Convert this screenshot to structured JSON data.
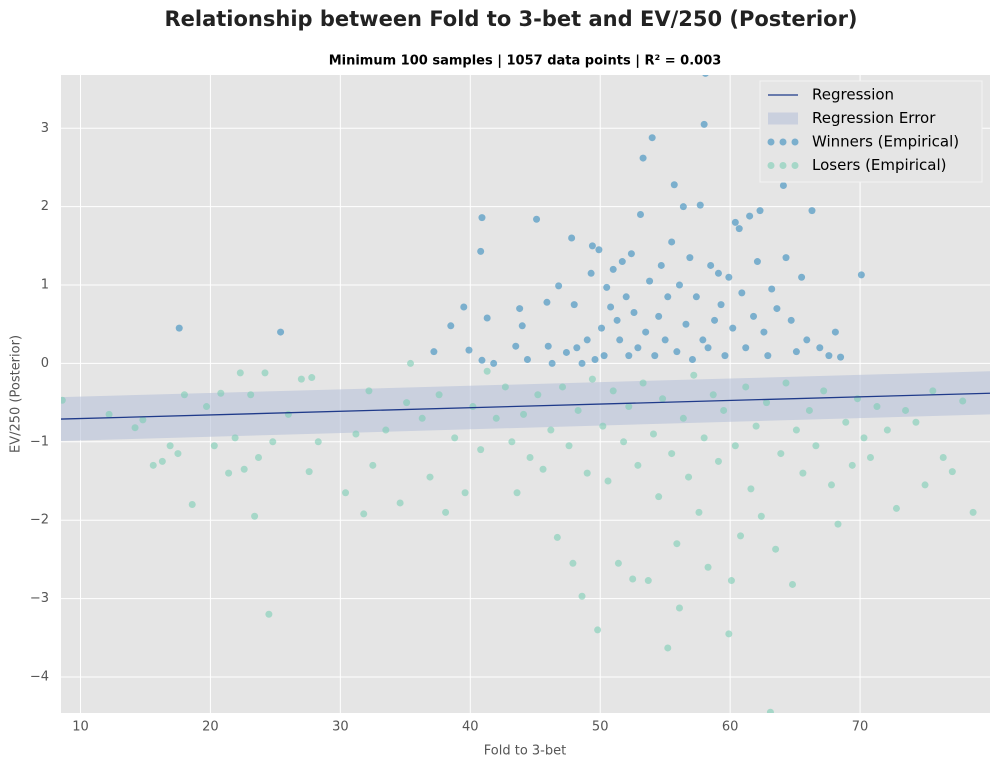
{
  "chart_data": {
    "type": "scatter",
    "title": "Relationship between Fold to 3-bet and EV/250 (Posterior)",
    "subtitle": "Minimum 100 samples | 1057 data points | R² =  0.003",
    "x_label": "Fold to 3-bet",
    "y_label": "EV/250 (Posterior)",
    "xlim": [
      8.5,
      80
    ],
    "ylim": [
      -4.46,
      3.68
    ],
    "xticks": [
      10,
      20,
      30,
      40,
      50,
      60,
      70
    ],
    "yticks": [
      {
        "value": -4,
        "label": "−4"
      },
      {
        "value": -3,
        "label": "−3"
      },
      {
        "value": -2,
        "label": "−2"
      },
      {
        "value": -1,
        "label": "−1"
      },
      0,
      1,
      2,
      3
    ],
    "grid": true,
    "legend": "upper right",
    "regression": {
      "name": "Regression",
      "color": "#1f3a8a",
      "x": [
        8.5,
        80
      ],
      "values": [
        -0.71,
        -0.38
      ],
      "band": {
        "name": "Regression Error",
        "color": "#b7c2d8",
        "x": [
          8.5,
          80
        ],
        "lower": [
          -0.99,
          -0.65
        ],
        "upper": [
          -0.43,
          -0.1
        ]
      }
    },
    "series": [
      {
        "name": "Winners (Empirical)",
        "color": "#348abd",
        "x": [
          17.6,
          25.4,
          37.2,
          38.5,
          39.5,
          39.9,
          40.9,
          40.8,
          40.9,
          41.3,
          41.8,
          43.5,
          43.8,
          44.0,
          44.4,
          45.1,
          45.9,
          46.0,
          46.3,
          46.8,
          47.4,
          47.8,
          48.0,
          48.2,
          48.6,
          49.0,
          49.3,
          49.4,
          49.6,
          49.9,
          50.1,
          50.3,
          50.5,
          50.8,
          51.0,
          51.3,
          51.5,
          51.7,
          52.0,
          52.2,
          52.4,
          52.6,
          52.9,
          53.1,
          53.3,
          53.5,
          53.8,
          54.0,
          54.2,
          54.5,
          54.7,
          55.0,
          55.2,
          55.5,
          55.7,
          55.9,
          56.1,
          56.4,
          56.6,
          56.9,
          57.1,
          57.4,
          57.7,
          57.9,
          58.0,
          58.1,
          58.3,
          58.5,
          58.8,
          59.1,
          59.3,
          59.6,
          59.9,
          60.2,
          60.4,
          60.7,
          60.9,
          61.2,
          61.5,
          61.8,
          62.1,
          62.3,
          62.6,
          62.9,
          63.2,
          63.6,
          64.1,
          64.3,
          64.7,
          65.1,
          65.5,
          65.9,
          66.3,
          66.9,
          67.6,
          68.1,
          68.5,
          70.1
        ],
        "values": [
          0.45,
          0.4,
          0.15,
          0.48,
          0.72,
          0.17,
          1.86,
          1.43,
          0.04,
          0.58,
          0.0,
          0.22,
          0.7,
          0.48,
          0.05,
          1.84,
          0.78,
          0.22,
          0.0,
          0.99,
          0.14,
          1.6,
          0.75,
          0.2,
          0.0,
          0.3,
          1.15,
          1.5,
          0.05,
          1.45,
          0.45,
          0.1,
          0.97,
          0.72,
          1.2,
          0.55,
          0.3,
          1.3,
          0.85,
          0.1,
          1.4,
          0.65,
          0.2,
          1.9,
          2.62,
          0.4,
          1.05,
          2.88,
          0.1,
          0.6,
          1.25,
          0.3,
          0.85,
          1.55,
          2.28,
          0.15,
          1.0,
          2.0,
          0.5,
          1.35,
          0.05,
          0.85,
          2.02,
          0.3,
          3.05,
          3.7,
          0.2,
          1.25,
          0.55,
          1.15,
          0.75,
          0.1,
          1.1,
          0.45,
          1.8,
          1.72,
          0.9,
          0.2,
          1.88,
          0.6,
          1.3,
          1.95,
          0.4,
          0.1,
          0.95,
          0.7,
          2.27,
          1.35,
          0.55,
          0.15,
          1.1,
          0.3,
          1.95,
          0.2,
          0.1,
          0.4,
          0.08,
          1.13
        ]
      },
      {
        "name": "Losers (Empirical)",
        "color": "#7ccdb4",
        "x": [
          8.6,
          12.2,
          14.2,
          14.8,
          15.6,
          16.3,
          16.9,
          17.5,
          18.0,
          18.6,
          19.7,
          20.3,
          20.8,
          21.4,
          21.9,
          22.3,
          22.6,
          23.1,
          23.4,
          23.7,
          24.2,
          24.5,
          24.8,
          26.0,
          27.0,
          27.6,
          27.8,
          28.3,
          30.4,
          31.2,
          31.8,
          32.2,
          32.5,
          33.5,
          34.6,
          35.1,
          35.4,
          36.3,
          36.9,
          37.6,
          38.1,
          38.8,
          39.6,
          40.2,
          40.8,
          41.3,
          42.0,
          42.7,
          43.2,
          43.6,
          44.1,
          44.6,
          45.2,
          45.6,
          46.2,
          46.7,
          47.1,
          47.6,
          47.9,
          48.3,
          48.6,
          49.0,
          49.4,
          49.8,
          50.2,
          50.6,
          51.0,
          51.4,
          51.8,
          52.2,
          52.5,
          52.9,
          53.3,
          53.7,
          54.1,
          54.5,
          54.8,
          55.2,
          55.5,
          55.9,
          56.1,
          56.4,
          56.8,
          57.2,
          57.6,
          58.0,
          58.3,
          58.7,
          59.1,
          59.5,
          59.9,
          60.1,
          60.4,
          60.8,
          61.2,
          61.6,
          62.0,
          62.4,
          62.8,
          63.1,
          63.5,
          63.9,
          64.3,
          64.8,
          65.1,
          65.6,
          66.1,
          66.6,
          67.2,
          67.8,
          68.3,
          68.9,
          69.4,
          69.8,
          70.3,
          70.8,
          71.3,
          72.1,
          72.8,
          73.5,
          74.3,
          75.0,
          75.6,
          76.4,
          77.1,
          77.9,
          78.7
        ],
        "values": [
          -0.47,
          -0.65,
          -0.82,
          -0.72,
          -1.3,
          -1.25,
          -1.05,
          -1.15,
          -0.4,
          -1.8,
          -0.55,
          -1.05,
          -0.38,
          -1.4,
          -0.95,
          -0.12,
          -1.35,
          -0.4,
          -1.95,
          -1.2,
          -0.12,
          -3.2,
          -1.0,
          -0.65,
          -0.2,
          -1.38,
          -0.18,
          -1.0,
          -1.65,
          -0.9,
          -1.92,
          -0.35,
          -1.3,
          -0.85,
          -1.78,
          -0.5,
          0.0,
          -0.7,
          -1.45,
          -0.4,
          -1.9,
          -0.95,
          -1.65,
          -0.55,
          -1.1,
          -0.1,
          -0.7,
          -0.3,
          -1.0,
          -1.65,
          -0.65,
          -1.2,
          -0.4,
          -1.35,
          -0.85,
          -2.22,
          -0.3,
          -1.05,
          -2.55,
          -0.6,
          -2.97,
          -1.4,
          -0.2,
          -3.4,
          -0.8,
          -1.5,
          -0.35,
          -2.55,
          -1.0,
          -0.55,
          -2.75,
          -1.3,
          -0.25,
          -2.77,
          -0.9,
          -1.7,
          -0.45,
          -3.63,
          -1.15,
          -2.3,
          -3.12,
          -0.7,
          -1.45,
          -0.15,
          -1.9,
          -0.95,
          -2.6,
          -0.4,
          -1.25,
          -0.6,
          -3.45,
          -2.77,
          -1.05,
          -2.2,
          -0.3,
          -1.6,
          -0.8,
          -1.95,
          -0.5,
          -4.45,
          -2.37,
          -1.15,
          -0.25,
          -2.82,
          -0.85,
          -1.4,
          -0.6,
          -1.05,
          -0.35,
          -1.55,
          -2.05,
          -0.75,
          -1.3,
          -0.45,
          -0.95,
          -1.2,
          -0.55,
          -0.85,
          -1.85,
          -0.6,
          -0.75,
          -1.55,
          -0.35,
          -1.2,
          -1.38,
          -0.48,
          -1.9
        ]
      }
    ]
  }
}
